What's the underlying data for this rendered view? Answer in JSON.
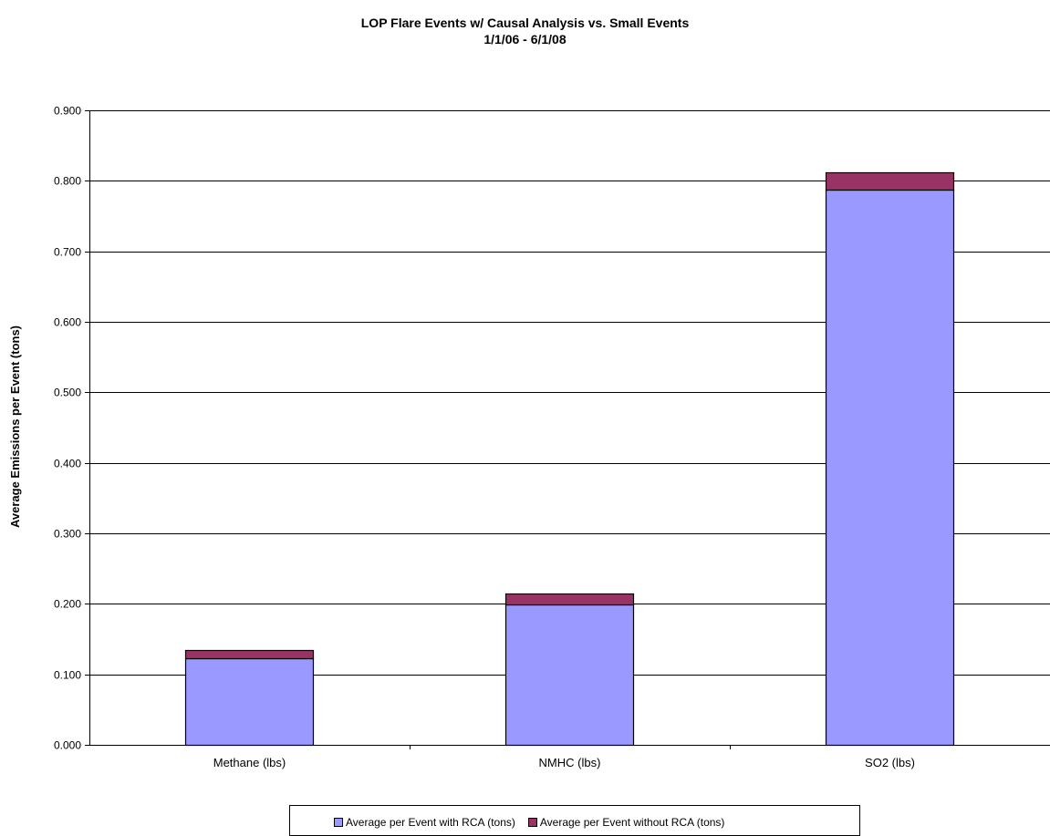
{
  "chart_data": {
    "type": "bar",
    "stacked": true,
    "title": "LOP Flare Events w/ Causal Analysis vs. Small Events",
    "subtitle": "1/1/06 - 6/1/08",
    "xlabel": "",
    "ylabel": "Average Emissions per Event (tons)",
    "categories": [
      "Methane (lbs)",
      "NMHC (lbs)",
      "SO2 (lbs)"
    ],
    "series": [
      {
        "name": "Average per Event with RCA (tons)",
        "values": [
          0.123,
          0.199,
          0.787
        ],
        "color": "#9999FF"
      },
      {
        "name": "Average per Event without RCA (tons)",
        "values": [
          0.011,
          0.016,
          0.025
        ],
        "color": "#993366"
      }
    ],
    "ylim": [
      0,
      0.9
    ],
    "yticks": [
      "0.000",
      "0.100",
      "0.200",
      "0.300",
      "0.400",
      "0.500",
      "0.600",
      "0.700",
      "0.800",
      "0.900"
    ],
    "grid": true,
    "legend_position": "bottom"
  }
}
